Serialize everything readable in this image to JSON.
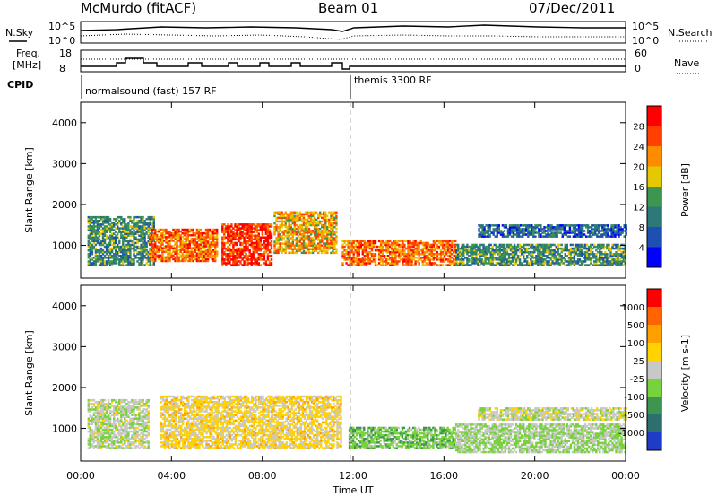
{
  "header": {
    "station": "McMurdo (fitACF)",
    "beam": "Beam 01",
    "date": "07/Dec/2011"
  },
  "top_panels": {
    "nsky_label": "N.Sky",
    "nsearch_label": "N.Search",
    "freq_label_1": "Freq.",
    "freq_label_2": "[MHz]",
    "nave_label": "Nave",
    "cpid_label": "CPID",
    "noise_ticks_left": [
      "10^5",
      "10^0"
    ],
    "noise_ticks_right": [
      "10^5",
      "10^0"
    ],
    "freq_ticks": [
      "18",
      "8"
    ],
    "nave_ticks": [
      "60",
      "0"
    ],
    "cpid_modes": [
      {
        "label": "normalsound (fast) 157 RF",
        "start_hour": 0.1
      },
      {
        "label": "themis 3300 RF",
        "start_hour": 11.9
      }
    ]
  },
  "chart_data": [
    {
      "type": "heatmap",
      "parameter": "Power",
      "xlabel": "",
      "ylabel": "Slant Range [km]",
      "xlim": [
        0,
        24
      ],
      "ylim": [
        200,
        4500
      ],
      "yticks": [
        1000,
        2000,
        3000,
        4000
      ],
      "colorbar": {
        "label": "Power [dB]",
        "ticks": [
          "28",
          "24",
          "20",
          "16",
          "12",
          "8",
          "4"
        ],
        "colors": [
          "#0000ff",
          "#1e50b4",
          "#2d7878",
          "#3c9650",
          "#e6c800",
          "#ff8c00",
          "#ff4000",
          "#ff0000"
        ],
        "range": [
          0,
          32
        ]
      },
      "echo_regions": [
        {
          "t_start": 0.3,
          "t_end": 3.2,
          "range_start": 500,
          "range_end": 1700,
          "level": 12
        },
        {
          "t_start": 3.0,
          "t_end": 6.0,
          "range_start": 600,
          "range_end": 1400,
          "level": 24
        },
        {
          "t_start": 6.2,
          "t_end": 8.4,
          "range_start": 500,
          "range_end": 1500,
          "level": 28
        },
        {
          "t_start": 8.5,
          "t_end": 11.3,
          "range_start": 800,
          "range_end": 1800,
          "level": 20
        },
        {
          "t_start": 11.5,
          "t_end": 16.5,
          "range_start": 500,
          "range_end": 1100,
          "level": 24
        },
        {
          "t_start": 16.5,
          "t_end": 24,
          "range_start": 500,
          "range_end": 1000,
          "level": 12
        },
        {
          "t_start": 17.5,
          "t_end": 24,
          "range_start": 1200,
          "range_end": 1500,
          "level": 8
        }
      ]
    },
    {
      "type": "heatmap",
      "parameter": "Velocity",
      "xlabel": "Time UT",
      "ylabel": "Slant Range [km]",
      "xlim": [
        0,
        24
      ],
      "ylim": [
        200,
        4500
      ],
      "xticks": [
        "00:00",
        "04:00",
        "08:00",
        "12:00",
        "16:00",
        "20:00",
        "00:00"
      ],
      "yticks": [
        1000,
        2000,
        3000,
        4000
      ],
      "colorbar": {
        "label": "Velocity [m s-1]",
        "ticks": [
          "1000",
          "500",
          "100",
          "25",
          "-25",
          "-100",
          "-500",
          "-1000"
        ],
        "colors": [
          "#1e3cc8",
          "#2d6e6e",
          "#3c9650",
          "#78d23c",
          "#c8c8c8",
          "#ffd200",
          "#ffa000",
          "#ff6400",
          "#ff0000"
        ],
        "range": [
          -1200,
          1200
        ]
      },
      "echo_regions": [
        {
          "t_start": 0.3,
          "t_end": 3.0,
          "range_start": 500,
          "range_end": 1700,
          "velocity": -50
        },
        {
          "t_start": 3.5,
          "t_end": 11.5,
          "range_start": 500,
          "range_end": 1800,
          "velocity": 200
        },
        {
          "t_start": 11.8,
          "t_end": 16.5,
          "range_start": 500,
          "range_end": 1000,
          "velocity": -300
        },
        {
          "t_start": 16.5,
          "t_end": 24,
          "range_start": 400,
          "range_end": 1100,
          "velocity": -150
        },
        {
          "t_start": 17.5,
          "t_end": 24,
          "range_start": 1200,
          "range_end": 1500,
          "velocity": 0
        }
      ]
    }
  ]
}
